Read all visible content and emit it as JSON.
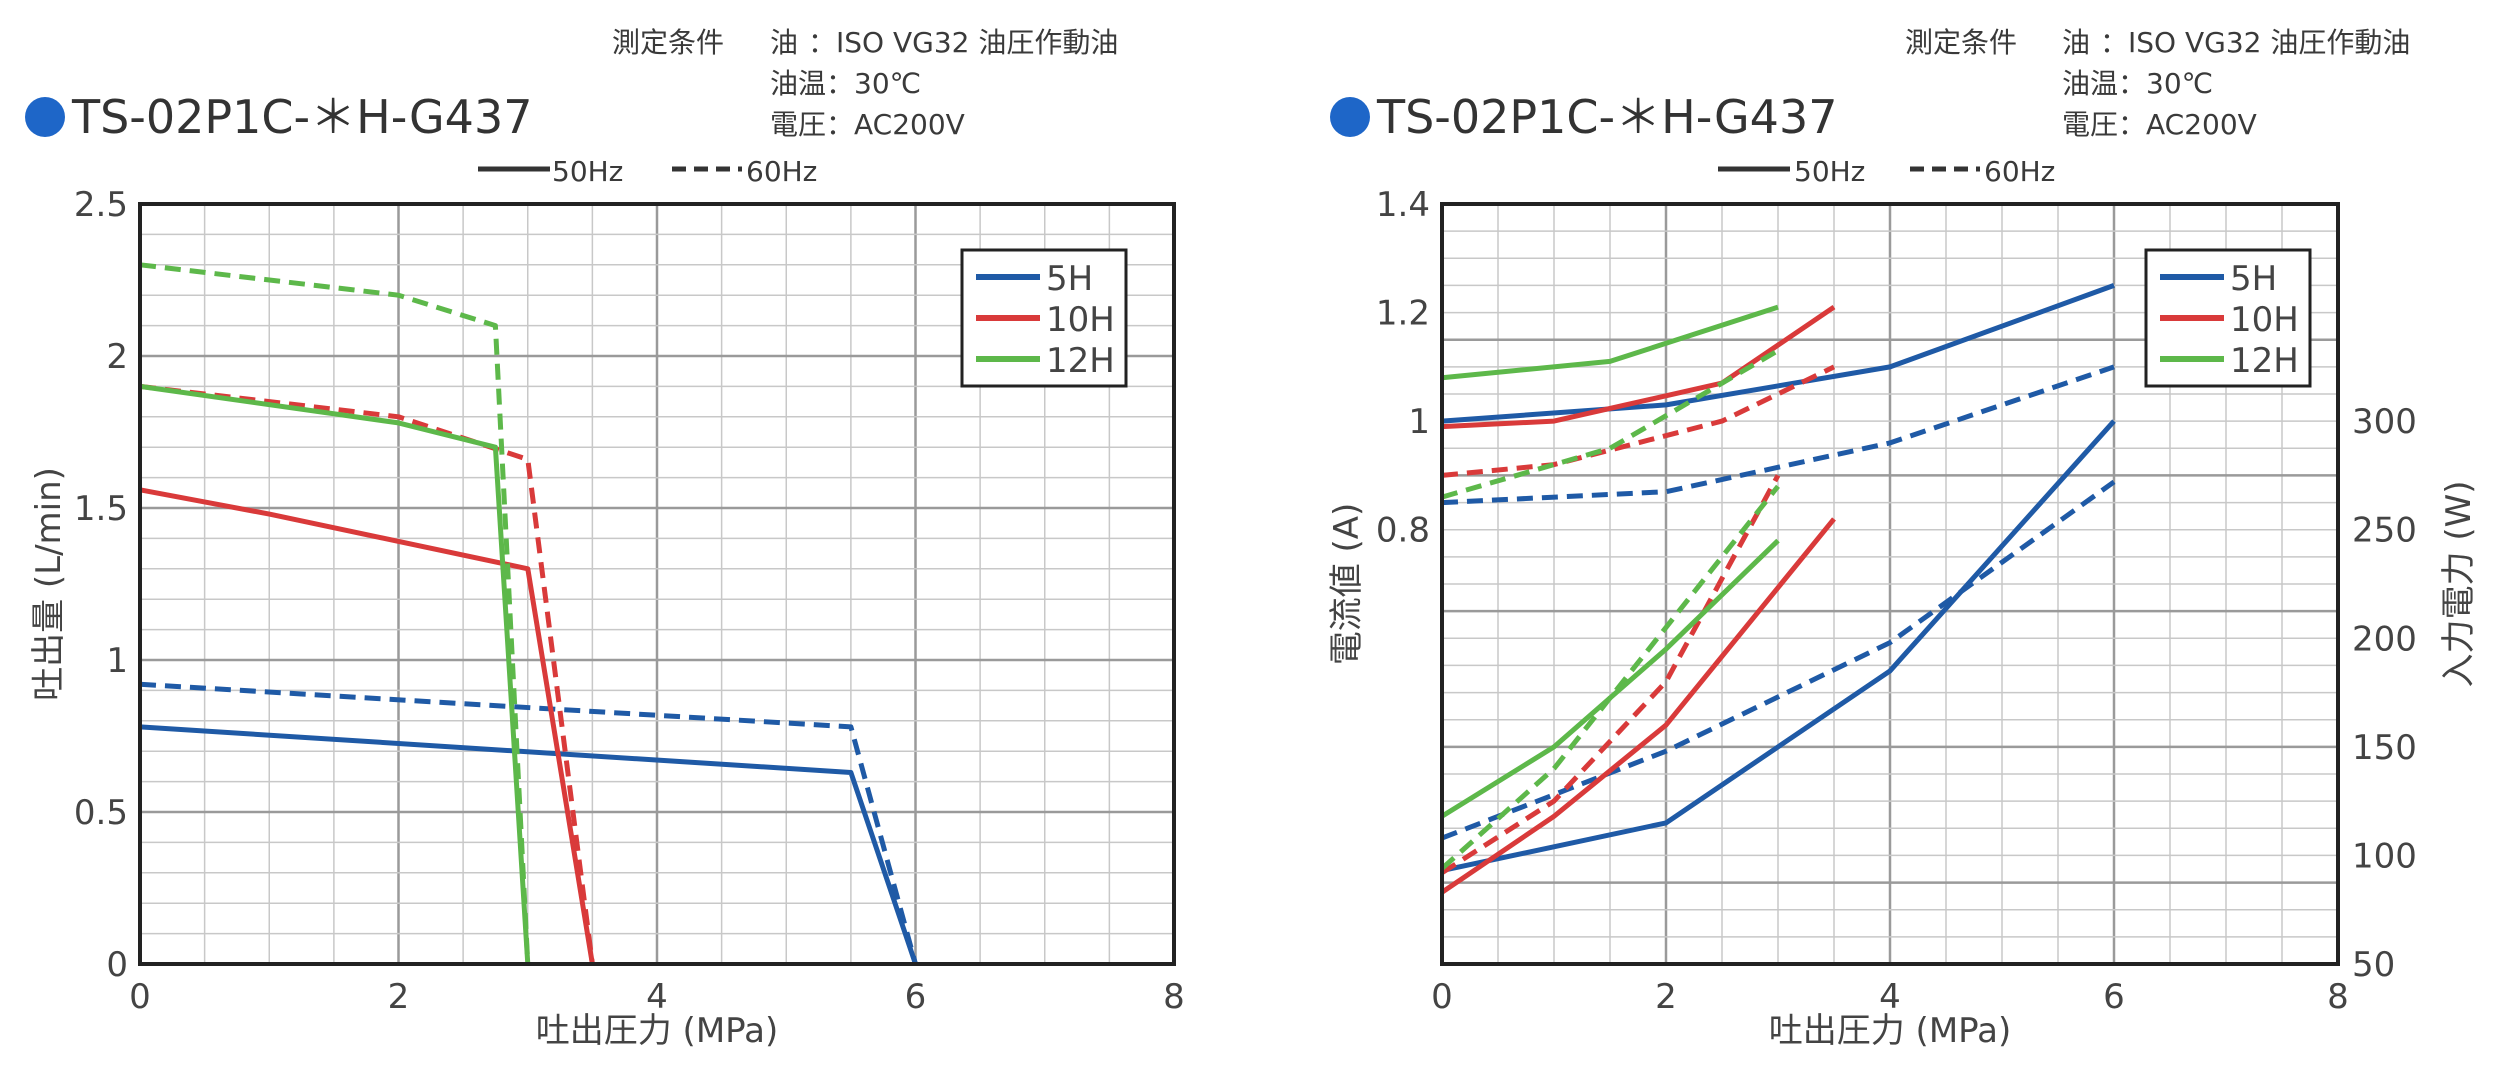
{
  "panels": [
    {
      "title": "TS-02P1C-＊H-G437",
      "conditions": [
        "測定条件",
        "油",
        "：ISO VG32 油圧作動油",
        "油温：30℃",
        "電圧：AC200V"
      ],
      "hz_legend": {
        "solid": "50Hz",
        "dashed": "60Hz"
      }
    },
    {
      "title": "TS-02P1C-＊H-G437",
      "conditions": [
        "測定条件",
        "油",
        "：ISO VG32 油圧作動油",
        "油温：30℃",
        "電圧：AC200V"
      ],
      "hz_legend": {
        "solid": "50Hz",
        "dashed": "60Hz"
      }
    }
  ],
  "colors": {
    "5H": "#1f5aa6",
    "10H": "#d93a3a",
    "12H": "#5db84a",
    "title_dot": "#1e66c8"
  },
  "chart_data": [
    {
      "type": "line",
      "xlabel": "吐出圧力 (MPa)",
      "ylabel": "吐出量 (L/min)",
      "xlim": [
        0,
        8
      ],
      "ylim": [
        0,
        2.5
      ],
      "xticks": [
        "0",
        "2",
        "4",
        "6",
        "8"
      ],
      "yticks": [
        "0",
        "0.5",
        "1",
        "1.5",
        "2",
        "2.5"
      ],
      "legend": [
        "5H",
        "10H",
        "12H"
      ],
      "legend_position": "top-right",
      "grid": true,
      "series": [
        {
          "name": "5H",
          "freq": "50Hz",
          "style": "solid",
          "points": [
            [
              0,
              0.78
            ],
            [
              5.5,
              0.63
            ],
            [
              6.0,
              0.0
            ]
          ]
        },
        {
          "name": "5H",
          "freq": "60Hz",
          "style": "dashed",
          "points": [
            [
              0,
              0.92
            ],
            [
              5.5,
              0.78
            ],
            [
              6.0,
              0.0
            ]
          ]
        },
        {
          "name": "10H",
          "freq": "50Hz",
          "style": "solid",
          "points": [
            [
              0,
              1.56
            ],
            [
              1.0,
              1.48
            ],
            [
              3.0,
              1.3
            ],
            [
              3.5,
              0.0
            ]
          ]
        },
        {
          "name": "10H",
          "freq": "60Hz",
          "style": "dashed",
          "points": [
            [
              0,
              1.9
            ],
            [
              2.0,
              1.8
            ],
            [
              3.0,
              1.66
            ],
            [
              3.5,
              0.0
            ]
          ]
        },
        {
          "name": "12H",
          "freq": "50Hz",
          "style": "solid",
          "points": [
            [
              0,
              1.9
            ],
            [
              2.0,
              1.78
            ],
            [
              2.75,
              1.7
            ],
            [
              3.0,
              0.0
            ]
          ]
        },
        {
          "name": "12H",
          "freq": "60Hz",
          "style": "dashed",
          "points": [
            [
              0,
              2.3
            ],
            [
              2.0,
              2.2
            ],
            [
              2.75,
              2.1
            ],
            [
              3.0,
              0.0
            ]
          ]
        }
      ]
    },
    {
      "type": "line",
      "xlabel": "吐出圧力 (MPa)",
      "ylabel": "電流値 (A)",
      "y2label": "入力電力 (W)",
      "xlim": [
        0,
        8
      ],
      "ylim": [
        0,
        1.4
      ],
      "y2lim": [
        50,
        400
      ],
      "xticks": [
        "0",
        "2",
        "4",
        "6",
        "8"
      ],
      "yticks": [
        "0.8",
        "1",
        "1.2",
        "1.4"
      ],
      "y2ticks": [
        "50",
        "100",
        "150",
        "200",
        "250",
        "300"
      ],
      "legend": [
        "5H",
        "10H",
        "12H"
      ],
      "legend_position": "top-right",
      "grid": true,
      "current_series": [
        {
          "name": "5H",
          "freq": "50Hz",
          "style": "solid",
          "points": [
            [
              0,
              1.0
            ],
            [
              2,
              1.03
            ],
            [
              4,
              1.1
            ],
            [
              6,
              1.25
            ]
          ]
        },
        {
          "name": "5H",
          "freq": "60Hz",
          "style": "dashed",
          "points": [
            [
              0,
              0.85
            ],
            [
              2,
              0.87
            ],
            [
              4,
              0.96
            ],
            [
              6,
              1.1
            ]
          ]
        },
        {
          "name": "10H",
          "freq": "50Hz",
          "style": "solid",
          "points": [
            [
              0,
              0.99
            ],
            [
              1,
              1.0
            ],
            [
              2.5,
              1.07
            ],
            [
              3.5,
              1.21
            ]
          ]
        },
        {
          "name": "10H",
          "freq": "60Hz",
          "style": "dashed",
          "points": [
            [
              0,
              0.9
            ],
            [
              1,
              0.92
            ],
            [
              2.5,
              1.0
            ],
            [
              3.5,
              1.1
            ]
          ]
        },
        {
          "name": "12H",
          "freq": "50Hz",
          "style": "solid",
          "points": [
            [
              0,
              1.08
            ],
            [
              1.5,
              1.11
            ],
            [
              3,
              1.21
            ]
          ]
        },
        {
          "name": "12H",
          "freq": "60Hz",
          "style": "dashed",
          "points": [
            [
              0,
              0.86
            ],
            [
              1.5,
              0.95
            ],
            [
              3,
              1.13
            ]
          ]
        }
      ],
      "power_series": [
        {
          "name": "5H",
          "freq": "50Hz",
          "style": "solid",
          "points": [
            [
              0,
              93
            ],
            [
              2,
              115
            ],
            [
              4,
              185
            ],
            [
              6,
              300
            ]
          ]
        },
        {
          "name": "5H",
          "freq": "60Hz",
          "style": "dashed",
          "points": [
            [
              0,
              108
            ],
            [
              2,
              148
            ],
            [
              4,
              198
            ],
            [
              6,
              272
            ]
          ]
        },
        {
          "name": "10H",
          "freq": "50Hz",
          "style": "solid",
          "points": [
            [
              0,
              83
            ],
            [
              1,
              118
            ],
            [
              2,
              160
            ],
            [
              3.5,
              255
            ]
          ]
        },
        {
          "name": "10H",
          "freq": "60Hz",
          "style": "dashed",
          "points": [
            [
              0,
              92
            ],
            [
              1,
              125
            ],
            [
              2,
              180
            ],
            [
              3,
              275
            ]
          ]
        },
        {
          "name": "12H",
          "freq": "50Hz",
          "style": "solid",
          "points": [
            [
              0,
              118
            ],
            [
              1,
              150
            ],
            [
              2,
              195
            ],
            [
              3,
              245
            ]
          ]
        },
        {
          "name": "12H",
          "freq": "60Hz",
          "style": "dashed",
          "points": [
            [
              0,
              94
            ],
            [
              1,
              140
            ],
            [
              2,
              205
            ],
            [
              3,
              270
            ]
          ]
        }
      ]
    }
  ]
}
